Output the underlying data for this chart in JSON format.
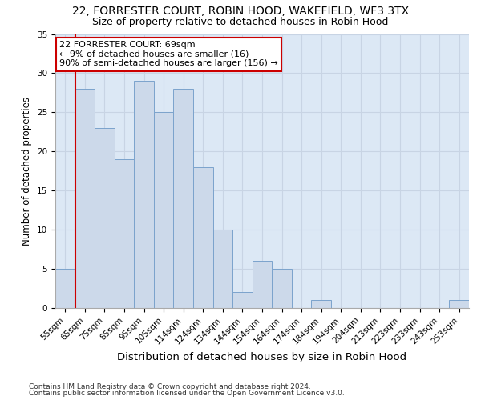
{
  "title": "22, FORRESTER COURT, ROBIN HOOD, WAKEFIELD, WF3 3TX",
  "subtitle": "Size of property relative to detached houses in Robin Hood",
  "xlabel": "Distribution of detached houses by size in Robin Hood",
  "ylabel": "Number of detached properties",
  "categories": [
    "55sqm",
    "65sqm",
    "75sqm",
    "85sqm",
    "95sqm",
    "105sqm",
    "114sqm",
    "124sqm",
    "134sqm",
    "144sqm",
    "154sqm",
    "164sqm",
    "174sqm",
    "184sqm",
    "194sqm",
    "204sqm",
    "213sqm",
    "223sqm",
    "233sqm",
    "243sqm",
    "253sqm"
  ],
  "values": [
    5,
    28,
    23,
    19,
    29,
    25,
    28,
    18,
    10,
    2,
    6,
    5,
    0,
    1,
    0,
    0,
    0,
    0,
    0,
    0,
    1
  ],
  "bar_color": "#ccd9ea",
  "bar_edge_color": "#7ba3cc",
  "annotation_title": "22 FORRESTER COURT: 69sqm",
  "annotation_line1": "← 9% of detached houses are smaller (16)",
  "annotation_line2": "90% of semi-detached houses are larger (156) →",
  "annotation_box_facecolor": "#ffffff",
  "annotation_box_edgecolor": "#cc0000",
  "vline_color": "#cc0000",
  "footnote1": "Contains HM Land Registry data © Crown copyright and database right 2024.",
  "footnote2": "Contains public sector information licensed under the Open Government Licence v3.0.",
  "ylim": [
    0,
    35
  ],
  "yticks": [
    0,
    5,
    10,
    15,
    20,
    25,
    30,
    35
  ],
  "title_fontsize": 10,
  "subtitle_fontsize": 9,
  "xlabel_fontsize": 9.5,
  "ylabel_fontsize": 8.5,
  "tick_fontsize": 7.5,
  "annotation_fontsize": 8,
  "footnote_fontsize": 6.5,
  "grid_color": "#c8d4e4",
  "bg_color": "#dce8f5",
  "fig_bg_color": "#ffffff"
}
